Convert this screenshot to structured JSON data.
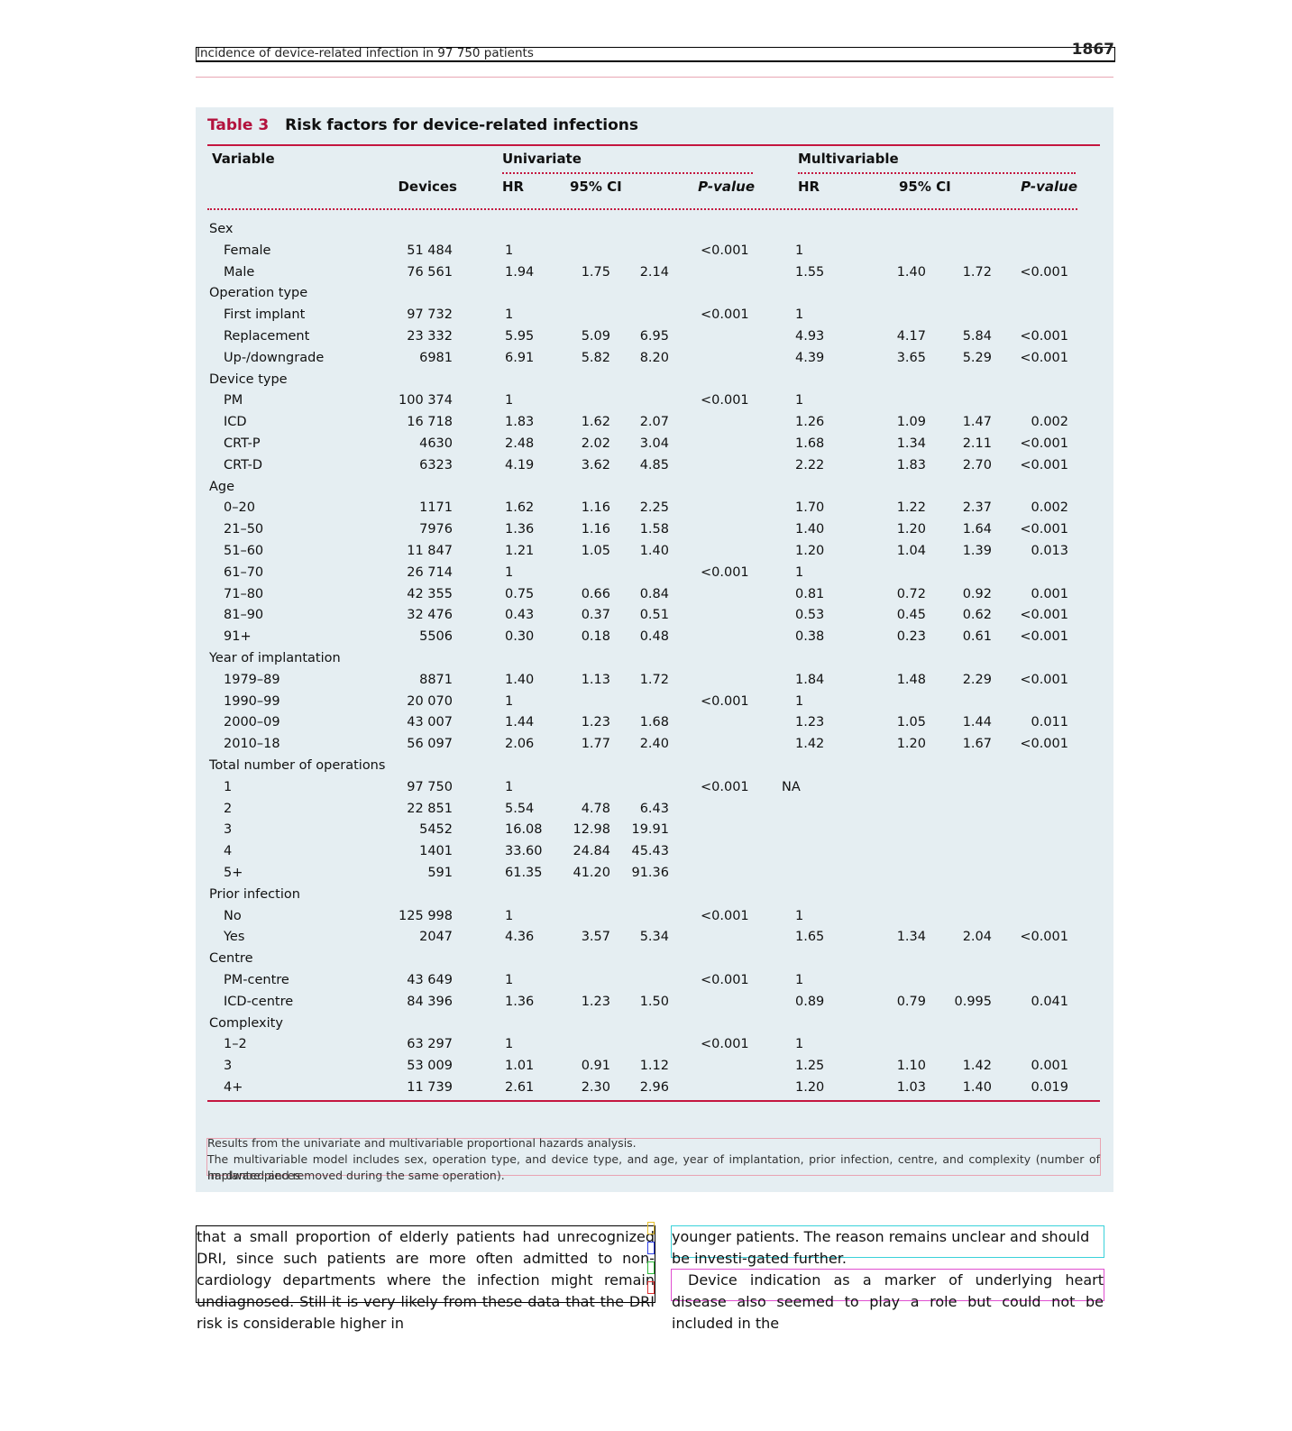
{
  "running_head": {
    "title": "Incidence of device-related infection in 97 750 patients",
    "page": "1867"
  },
  "table": {
    "label": "Table 3",
    "title": "Risk factors for device-related infections",
    "headers": {
      "variable": "Variable",
      "devices": "Devices",
      "univariate": "Univariate",
      "multivariable": "Multivariable",
      "hr": "HR",
      "ci": "95% CI",
      "p_value": "P-value"
    },
    "rows": [
      {
        "label": "Sex",
        "group": true
      },
      {
        "label": "Female",
        "devices": "51 484",
        "hr": "1",
        "lo": "",
        "hi": "",
        "p": "<0.001",
        "mhr": "1",
        "mlo": "",
        "mhi": "",
        "mp": ""
      },
      {
        "label": "Male",
        "devices": "76 561",
        "hr": "1.94",
        "lo": "1.75",
        "hi": "2.14",
        "p": "",
        "mhr": "1.55",
        "mlo": "1.40",
        "mhi": "1.72",
        "mp": "<0.001"
      },
      {
        "label": "Operation type",
        "group": true
      },
      {
        "label": "First implant",
        "devices": "97 732",
        "hr": "1",
        "lo": "",
        "hi": "",
        "p": "<0.001",
        "mhr": "1",
        "mlo": "",
        "mhi": "",
        "mp": ""
      },
      {
        "label": "Replacement",
        "devices": "23 332",
        "hr": "5.95",
        "lo": "5.09",
        "hi": "6.95",
        "p": "",
        "mhr": "4.93",
        "mlo": "4.17",
        "mhi": "5.84",
        "mp": "<0.001"
      },
      {
        "label": "Up-/downgrade",
        "devices": "6981",
        "hr": "6.91",
        "lo": "5.82",
        "hi": "8.20",
        "p": "",
        "mhr": "4.39",
        "mlo": "3.65",
        "mhi": "5.29",
        "mp": "<0.001"
      },
      {
        "label": "Device type",
        "group": true
      },
      {
        "label": "PM",
        "devices": "100 374",
        "hr": "1",
        "lo": "",
        "hi": "",
        "p": "<0.001",
        "mhr": "1",
        "mlo": "",
        "mhi": "",
        "mp": ""
      },
      {
        "label": "ICD",
        "devices": "16 718",
        "hr": "1.83",
        "lo": "1.62",
        "hi": "2.07",
        "p": "",
        "mhr": "1.26",
        "mlo": "1.09",
        "mhi": "1.47",
        "mp": "0.002"
      },
      {
        "label": "CRT-P",
        "devices": "4630",
        "hr": "2.48",
        "lo": "2.02",
        "hi": "3.04",
        "p": "",
        "mhr": "1.68",
        "mlo": "1.34",
        "mhi": "2.11",
        "mp": "<0.001"
      },
      {
        "label": "CRT-D",
        "devices": "6323",
        "hr": "4.19",
        "lo": "3.62",
        "hi": "4.85",
        "p": "",
        "mhr": "2.22",
        "mlo": "1.83",
        "mhi": "2.70",
        "mp": "<0.001"
      },
      {
        "label": "Age",
        "group": true
      },
      {
        "label": "0–20",
        "devices": "1171",
        "hr": "1.62",
        "lo": "1.16",
        "hi": "2.25",
        "p": "",
        "mhr": "1.70",
        "mlo": "1.22",
        "mhi": "2.37",
        "mp": "0.002"
      },
      {
        "label": "21–50",
        "devices": "7976",
        "hr": "1.36",
        "lo": "1.16",
        "hi": "1.58",
        "p": "",
        "mhr": "1.40",
        "mlo": "1.20",
        "mhi": "1.64",
        "mp": "<0.001"
      },
      {
        "label": "51–60",
        "devices": "11 847",
        "hr": "1.21",
        "lo": "1.05",
        "hi": "1.40",
        "p": "",
        "mhr": "1.20",
        "mlo": "1.04",
        "mhi": "1.39",
        "mp": "0.013"
      },
      {
        "label": "61–70",
        "devices": "26 714",
        "hr": "1",
        "lo": "",
        "hi": "",
        "p": "<0.001",
        "mhr": "1",
        "mlo": "",
        "mhi": "",
        "mp": ""
      },
      {
        "label": "71–80",
        "devices": "42 355",
        "hr": "0.75",
        "lo": "0.66",
        "hi": "0.84",
        "p": "",
        "mhr": "0.81",
        "mlo": "0.72",
        "mhi": "0.92",
        "mp": "0.001"
      },
      {
        "label": "81–90",
        "devices": "32 476",
        "hr": "0.43",
        "lo": "0.37",
        "hi": "0.51",
        "p": "",
        "mhr": "0.53",
        "mlo": "0.45",
        "mhi": "0.62",
        "mp": "<0.001"
      },
      {
        "label": "91+",
        "devices": "5506",
        "hr": "0.30",
        "lo": "0.18",
        "hi": "0.48",
        "p": "",
        "mhr": "0.38",
        "mlo": "0.23",
        "mhi": "0.61",
        "mp": "<0.001"
      },
      {
        "label": "Year of implantation",
        "group": true
      },
      {
        "label": "1979–89",
        "devices": "8871",
        "hr": "1.40",
        "lo": "1.13",
        "hi": "1.72",
        "p": "",
        "mhr": "1.84",
        "mlo": "1.48",
        "mhi": "2.29",
        "mp": "<0.001"
      },
      {
        "label": "1990–99",
        "devices": "20 070",
        "hr": "1",
        "lo": "",
        "hi": "",
        "p": "<0.001",
        "mhr": "1",
        "mlo": "",
        "mhi": "",
        "mp": ""
      },
      {
        "label": "2000–09",
        "devices": "43 007",
        "hr": "1.44",
        "lo": "1.23",
        "hi": "1.68",
        "p": "",
        "mhr": "1.23",
        "mlo": "1.05",
        "mhi": "1.44",
        "mp": "0.011"
      },
      {
        "label": "2010–18",
        "devices": "56 097",
        "hr": "2.06",
        "lo": "1.77",
        "hi": "2.40",
        "p": "",
        "mhr": "1.42",
        "mlo": "1.20",
        "mhi": "1.67",
        "mp": "<0.001"
      },
      {
        "label": "Total number of operations",
        "group": true
      },
      {
        "label": "1",
        "devices": "97 750",
        "hr": "1",
        "lo": "",
        "hi": "",
        "p": "<0.001",
        "mhr": "NA",
        "mlo": "",
        "mhi": "",
        "mp": ""
      },
      {
        "label": "2",
        "devices": "22 851",
        "hr": "5.54",
        "lo": "4.78",
        "hi": "6.43",
        "p": "",
        "mhr": "",
        "mlo": "",
        "mhi": "",
        "mp": ""
      },
      {
        "label": "3",
        "devices": "5452",
        "hr": "16.08",
        "lo": "12.98",
        "hi": "19.91",
        "p": "",
        "mhr": "",
        "mlo": "",
        "mhi": "",
        "mp": ""
      },
      {
        "label": "4",
        "devices": "1401",
        "hr": "33.60",
        "lo": "24.84",
        "hi": "45.43",
        "p": "",
        "mhr": "",
        "mlo": "",
        "mhi": "",
        "mp": ""
      },
      {
        "label": "5+",
        "devices": "591",
        "hr": "61.35",
        "lo": "41.20",
        "hi": "91.36",
        "p": "",
        "mhr": "",
        "mlo": "",
        "mhi": "",
        "mp": ""
      },
      {
        "label": "Prior infection",
        "group": true
      },
      {
        "label": "No",
        "devices": "125 998",
        "hr": "1",
        "lo": "",
        "hi": "",
        "p": "<0.001",
        "mhr": "1",
        "mlo": "",
        "mhi": "",
        "mp": ""
      },
      {
        "label": "Yes",
        "devices": "2047",
        "hr": "4.36",
        "lo": "3.57",
        "hi": "5.34",
        "p": "",
        "mhr": "1.65",
        "mlo": "1.34",
        "mhi": "2.04",
        "mp": "<0.001"
      },
      {
        "label": "Centre",
        "group": true
      },
      {
        "label": "PM-centre",
        "devices": "43 649",
        "hr": "1",
        "lo": "",
        "hi": "",
        "p": "<0.001",
        "mhr": "1",
        "mlo": "",
        "mhi": "",
        "mp": ""
      },
      {
        "label": "ICD-centre",
        "devices": "84 396",
        "hr": "1.36",
        "lo": "1.23",
        "hi": "1.50",
        "p": "",
        "mhr": "0.89",
        "mlo": "0.79",
        "mhi": "0.995",
        "mp": "0.041"
      },
      {
        "label": "Complexity",
        "group": true
      },
      {
        "label": "1–2",
        "devices": "63 297",
        "hr": "1",
        "lo": "",
        "hi": "",
        "p": "<0.001",
        "mhr": "1",
        "mlo": "",
        "mhi": "",
        "mp": ""
      },
      {
        "label": "3",
        "devices": "53 009",
        "hr": "1.01",
        "lo": "0.91",
        "hi": "1.12",
        "p": "",
        "mhr": "1.25",
        "mlo": "1.10",
        "mhi": "1.42",
        "mp": "0.001"
      },
      {
        "label": "4+",
        "devices": "11 739",
        "hr": "2.61",
        "lo": "2.30",
        "hi": "2.96",
        "p": "",
        "mhr": "1.20",
        "mlo": "1.03",
        "mhi": "1.40",
        "mp": "0.019"
      }
    ],
    "footnote_1": "Results from the univariate and multivariable proportional hazards analysis.",
    "footnote_2": "The multivariable model includes sex, operation type, and device type, and age, year of implantation, prior infection, centre, and complexity (number of hardware pieces",
    "footnote_3": "implanted and removed during the same operation)."
  },
  "body": {
    "left_paragraph": "that a small proportion of elderly patients had unrecognized DRI, since such patients are more often admitted to non-cardiology departments where the infection might remain undiagnosed. Still it is very likely from these data that the DRI risk is considerable higher in",
    "right_paragraph_1": "younger patients. The reason remains unclear and should be investi-gated further.",
    "right_paragraph_2": "Device indication as a marker of underlying heart disease also seemed to play a role but could not be included in the"
  }
}
